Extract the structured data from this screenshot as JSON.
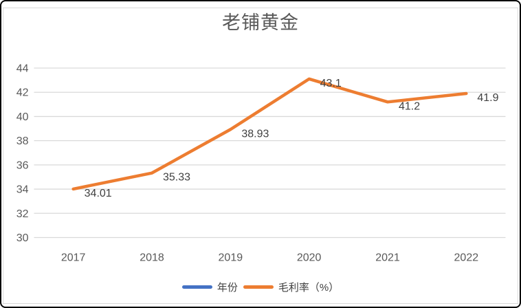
{
  "title": "老铺黄金",
  "chart_data": {
    "type": "line",
    "title": "老铺黄金",
    "categories": [
      "2017",
      "2018",
      "2019",
      "2020",
      "2021",
      "2022"
    ],
    "series": [
      {
        "name": "年份",
        "color": "#4472C4",
        "plotted_visible": false
      },
      {
        "name": "毛利率（%）",
        "color": "#ED7D31",
        "values": [
          34.01,
          35.33,
          38.93,
          43.1,
          41.2,
          41.9
        ],
        "data_labels": [
          "34.01",
          "35.33",
          "38.93",
          "43.1",
          "41.2",
          "41.9"
        ]
      }
    ],
    "ylim": [
      30,
      44
    ],
    "yticks": [
      30,
      32,
      34,
      36,
      38,
      40,
      42,
      44
    ],
    "xlabel": "",
    "ylabel": "",
    "grid": true,
    "legend_position": "bottom"
  },
  "colors": {
    "accent_blue": "#4472C4",
    "accent_orange": "#ED7D31",
    "gridline": "#D9D9D9",
    "axis_text": "#595959",
    "data_label_text": "#404040",
    "title_text": "#595959",
    "frame_border": "#000000",
    "card_border": "#D9D9D9",
    "background": "#FFFFFF"
  }
}
